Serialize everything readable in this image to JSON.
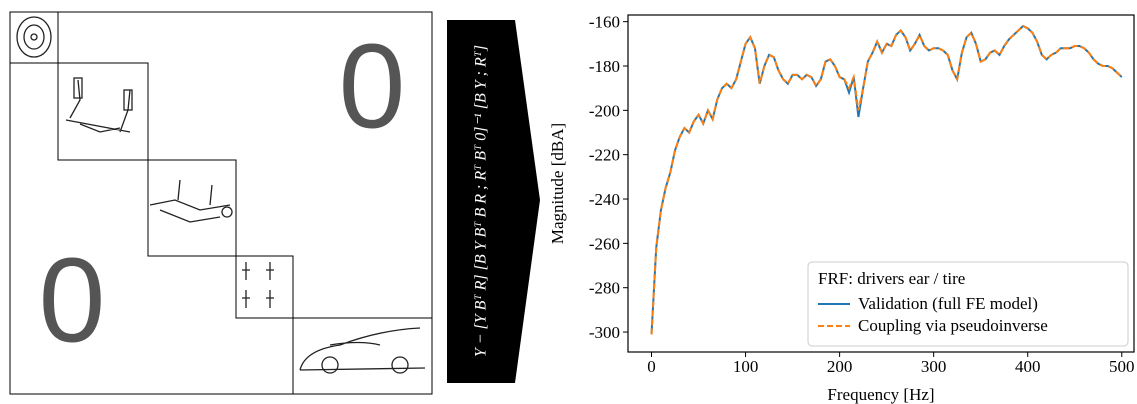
{
  "diagram": {
    "zero_top": "0",
    "zero_bottom": "0",
    "formula": "Y − [Y Bᵀ  R] [B Y Bᵀ  B R ; Rᵀ Bᵀ  0]⁻¹ [B Y ; Rᵀ]"
  },
  "chart_data": {
    "type": "line",
    "xlabel": "Frequency [Hz]",
    "ylabel": "Magnitude [dBA]",
    "legend_title": "FRF: drivers ear / tire",
    "legend": "lower right",
    "xlim": [
      -25,
      513
    ],
    "ylim": [
      -309,
      -157
    ],
    "xticks": [
      0,
      100,
      200,
      300,
      400,
      500
    ],
    "yticks": [
      -160,
      -180,
      -200,
      -220,
      -240,
      -260,
      -280,
      -300
    ],
    "x": [
      0,
      5,
      10,
      15,
      20,
      25,
      30,
      35,
      40,
      45,
      50,
      55,
      60,
      65,
      70,
      75,
      80,
      85,
      90,
      95,
      100,
      105,
      110,
      115,
      120,
      125,
      130,
      135,
      140,
      145,
      150,
      155,
      160,
      165,
      170,
      175,
      180,
      185,
      190,
      195,
      200,
      205,
      210,
      215,
      220,
      225,
      230,
      235,
      240,
      245,
      250,
      255,
      260,
      265,
      270,
      275,
      280,
      285,
      290,
      295,
      300,
      305,
      310,
      315,
      320,
      325,
      330,
      335,
      340,
      345,
      350,
      355,
      360,
      365,
      370,
      375,
      380,
      385,
      390,
      395,
      400,
      405,
      410,
      415,
      420,
      425,
      430,
      435,
      440,
      445,
      450,
      455,
      460,
      465,
      470,
      475,
      480,
      485,
      490,
      495,
      500
    ],
    "series": [
      {
        "name": "Validation (full FE model)",
        "color": "#1f77b4",
        "dash": false,
        "values": [
          -301,
          -262,
          -245,
          -235,
          -228,
          -218,
          -212,
          -208,
          -210,
          -205,
          -202,
          -206,
          -200,
          -204,
          -195,
          -190,
          -188,
          -190,
          -186,
          -178,
          -170,
          -167,
          -172,
          -188,
          -180,
          -175,
          -176,
          -182,
          -186,
          -188,
          -184,
          -184,
          -186,
          -184,
          -185,
          -189,
          -186,
          -178,
          -177,
          -180,
          -185,
          -186,
          -192,
          -185,
          -203,
          -190,
          -178,
          -174,
          -169,
          -174,
          -170,
          -171,
          -166,
          -164,
          -167,
          -173,
          -170,
          -166,
          -171,
          -173,
          -172,
          -172,
          -173,
          -175,
          -182,
          -186,
          -174,
          -167,
          -165,
          -170,
          -178,
          -177,
          -174,
          -173,
          -175,
          -171,
          -168,
          -166,
          -164,
          -162,
          -163,
          -165,
          -169,
          -175,
          -177,
          -175,
          -174,
          -172,
          -172,
          -172,
          -171,
          -171,
          -172,
          -174,
          -177,
          -179,
          -180,
          -180,
          -181,
          -183,
          -185
        ]
      },
      {
        "name": "Coupling via pseudoinverse",
        "color": "#ff7f0e",
        "dash": true,
        "values": [
          -301,
          -262,
          -245,
          -235,
          -228,
          -218,
          -212,
          -208,
          -210,
          -205,
          -202,
          -206,
          -200,
          -204,
          -195,
          -190,
          -188,
          -190,
          -186,
          -178,
          -170,
          -167,
          -172,
          -188,
          -180,
          -175,
          -176,
          -182,
          -186,
          -188,
          -184,
          -184,
          -186,
          -184,
          -185,
          -189,
          -186,
          -178,
          -177,
          -180,
          -185,
          -186,
          -190,
          -185,
          -200,
          -190,
          -178,
          -174,
          -169,
          -174,
          -170,
          -171,
          -166,
          -164,
          -167,
          -173,
          -170,
          -166,
          -171,
          -173,
          -172,
          -172,
          -173,
          -175,
          -182,
          -186,
          -174,
          -167,
          -165,
          -170,
          -178,
          -177,
          -174,
          -173,
          -175,
          -171,
          -168,
          -166,
          -164,
          -162,
          -163,
          -165,
          -169,
          -175,
          -177,
          -175,
          -174,
          -172,
          -172,
          -172,
          -171,
          -171,
          -172,
          -174,
          -177,
          -179,
          -180,
          -180,
          -181,
          -183,
          -185
        ]
      }
    ]
  }
}
